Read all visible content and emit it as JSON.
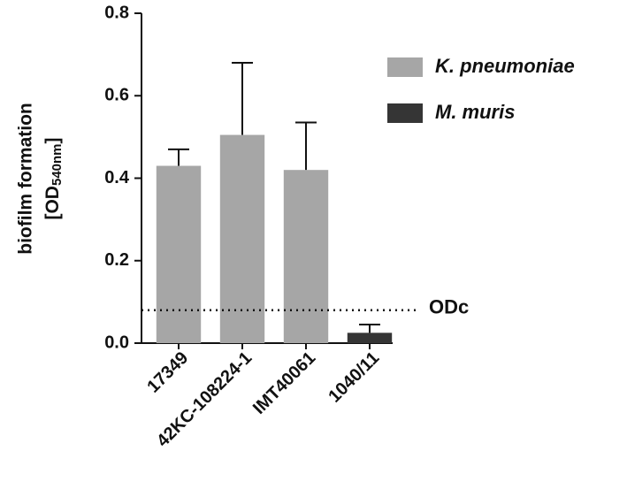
{
  "chart_data": {
    "type": "bar",
    "ylabel": {
      "line1": "biofilm formation",
      "line2_pre": "[OD",
      "line2_sub": "540nm",
      "line2_post": "]"
    },
    "categories": [
      "17349",
      "42KC-108224-1",
      "IMT40061",
      "1040/11"
    ],
    "series": [
      {
        "name": "K. pneumoniae",
        "color": "#a6a6a6",
        "values": [
          0.43,
          0.505,
          0.42,
          null
        ],
        "errors": [
          0.04,
          0.175,
          0.115,
          null
        ]
      },
      {
        "name": "M. muris",
        "color": "#353535",
        "values": [
          null,
          null,
          null,
          0.025
        ],
        "errors": [
          null,
          null,
          null,
          0.02
        ]
      }
    ],
    "ylim": [
      0,
      0.8
    ],
    "yticks": [
      {
        "value": 0,
        "label": "0.0"
      },
      0.2,
      0.4,
      0.6,
      0.8
    ],
    "threshold": {
      "label": "ODc",
      "value": 0.08
    },
    "legend": "upper right"
  }
}
